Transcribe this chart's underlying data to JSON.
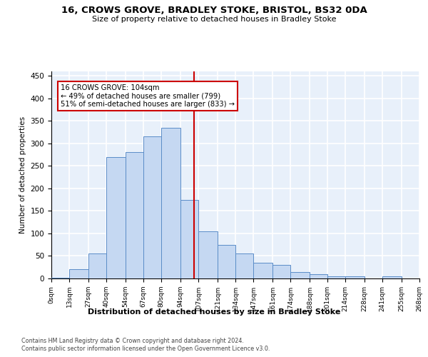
{
  "title1": "16, CROWS GROVE, BRADLEY STOKE, BRISTOL, BS32 0DA",
  "title2": "Size of property relative to detached houses in Bradley Stoke",
  "xlabel": "Distribution of detached houses by size in Bradley Stoke",
  "ylabel": "Number of detached properties",
  "bin_labels": [
    "0sqm",
    "13sqm",
    "27sqm",
    "40sqm",
    "54sqm",
    "67sqm",
    "80sqm",
    "94sqm",
    "107sqm",
    "121sqm",
    "134sqm",
    "147sqm",
    "161sqm",
    "174sqm",
    "188sqm",
    "201sqm",
    "214sqm",
    "228sqm",
    "241sqm",
    "255sqm",
    "268sqm"
  ],
  "bin_edges": [
    0,
    13,
    27,
    40,
    54,
    67,
    80,
    94,
    107,
    121,
    134,
    147,
    161,
    174,
    188,
    201,
    214,
    228,
    241,
    255,
    268
  ],
  "bar_heights": [
    2,
    20,
    55,
    270,
    280,
    315,
    335,
    175,
    105,
    75,
    55,
    35,
    30,
    15,
    10,
    5,
    5,
    0,
    5,
    0
  ],
  "bar_color": "#C5D8F2",
  "bar_edge_color": "#5B8DC8",
  "vline_x": 104,
  "vline_color": "#CC0000",
  "annotation_line1": "16 CROWS GROVE: 104sqm",
  "annotation_line2": "← 49% of detached houses are smaller (799)",
  "annotation_line3": "51% of semi-detached houses are larger (833) →",
  "background_color": "#E8F0FA",
  "grid_color": "white",
  "yticks": [
    0,
    50,
    100,
    150,
    200,
    250,
    300,
    350,
    400,
    450
  ],
  "ylim": [
    0,
    460
  ],
  "footer1": "Contains HM Land Registry data © Crown copyright and database right 2024.",
  "footer2": "Contains public sector information licensed under the Open Government Licence v3.0."
}
